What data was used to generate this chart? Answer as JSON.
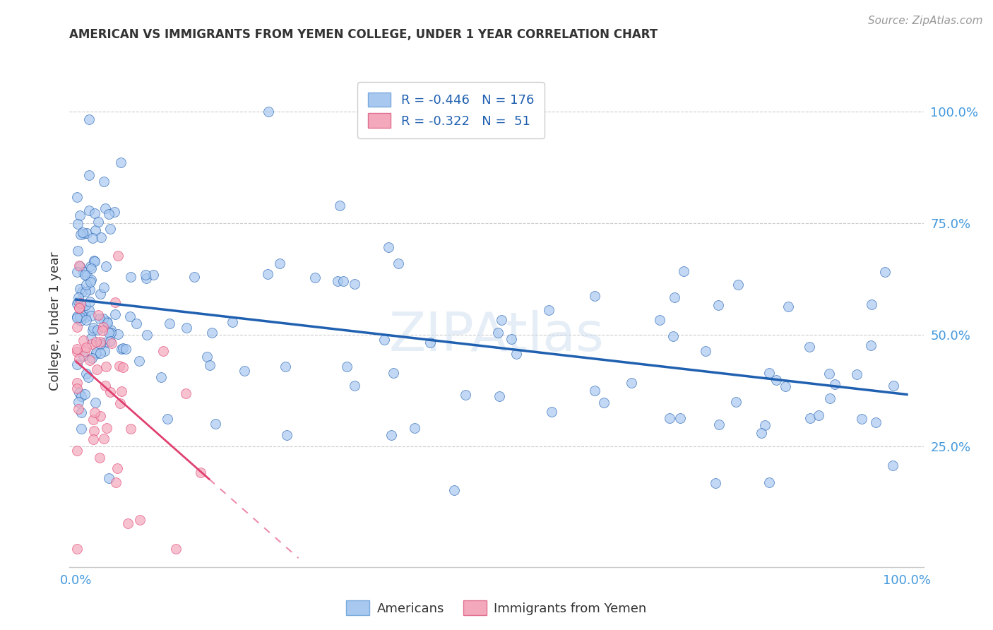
{
  "title": "AMERICAN VS IMMIGRANTS FROM YEMEN COLLEGE, UNDER 1 YEAR CORRELATION CHART",
  "source": "Source: ZipAtlas.com",
  "ylabel": "College, Under 1 year",
  "legend_am": "Americans",
  "legend_ye": "Immigrants from Yemen",
  "r_american": -0.446,
  "n_american": 176,
  "r_yemen": -0.322,
  "n_yemen": 51,
  "color_american": "#A8C8F0",
  "color_yemen": "#F4A8BC",
  "trend_color_american": "#2060B0",
  "trend_color_yemen": "#E04070",
  "background_color": "#FFFFFF",
  "watermark": "ZIPAtlas",
  "grid_color": "#CCCCCC",
  "tick_color": "#4499DD",
  "title_color": "#333333",
  "source_color": "#999999"
}
